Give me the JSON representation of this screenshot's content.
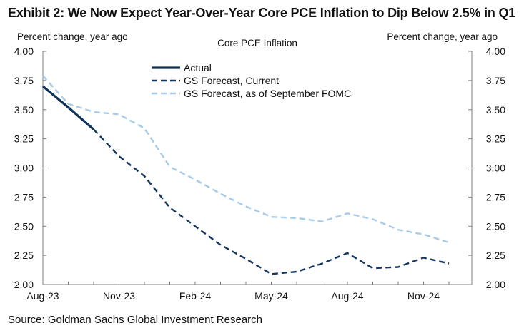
{
  "header": {
    "exhibit_title": "Exhibit 2: We Now Expect Year-Over-Year Core PCE Inflation to Dip Below 2.5% in Q1"
  },
  "footer": {
    "source": "Source: Goldman Sachs Global Investment Research"
  },
  "colors": {
    "actual": "#0f3358",
    "current": "#14365e",
    "september": "#a7cbe8",
    "axis": "#7f7f7f"
  },
  "chart_data": {
    "type": "line",
    "title": "Core PCE Inflation",
    "ylabel_left": "Percent change, year ago",
    "ylabel_right": "Percent change, year ago",
    "xlabel": "",
    "ylim": [
      2.0,
      4.0
    ],
    "yticks": [
      "4.00",
      "3.75",
      "3.50",
      "3.25",
      "3.00",
      "2.75",
      "2.50",
      "2.25",
      "2.00"
    ],
    "xticks": [
      "Aug-23",
      "Nov-23",
      "Feb-24",
      "May-24",
      "Aug-24",
      "Nov-24"
    ],
    "x": [
      "Aug-23",
      "Sep-23",
      "Oct-23",
      "Nov-23",
      "Dec-23",
      "Jan-24",
      "Feb-24",
      "Mar-24",
      "Apr-24",
      "May-24",
      "Jun-24",
      "Jul-24",
      "Aug-24",
      "Sep-24",
      "Oct-24",
      "Nov-24",
      "Dec-24"
    ],
    "legend_position": "top-center",
    "series": [
      {
        "name": "Actual",
        "style": "solid",
        "values": [
          3.7,
          3.52,
          3.33,
          null,
          null,
          null,
          null,
          null,
          null,
          null,
          null,
          null,
          null,
          null,
          null,
          null,
          null
        ]
      },
      {
        "name": "GS Forecast, Current",
        "style": "dashed",
        "values": [
          null,
          null,
          3.33,
          3.1,
          2.93,
          2.66,
          2.5,
          2.34,
          2.22,
          2.09,
          2.11,
          2.18,
          2.27,
          2.14,
          2.15,
          2.23,
          2.18
        ]
      },
      {
        "name": "GS Forecast, as of September FOMC",
        "style": "dashed",
        "values": [
          3.79,
          3.55,
          3.48,
          3.46,
          3.34,
          3.01,
          2.9,
          2.78,
          2.67,
          2.58,
          2.57,
          2.54,
          2.61,
          2.56,
          2.47,
          2.43,
          2.36
        ]
      }
    ]
  }
}
